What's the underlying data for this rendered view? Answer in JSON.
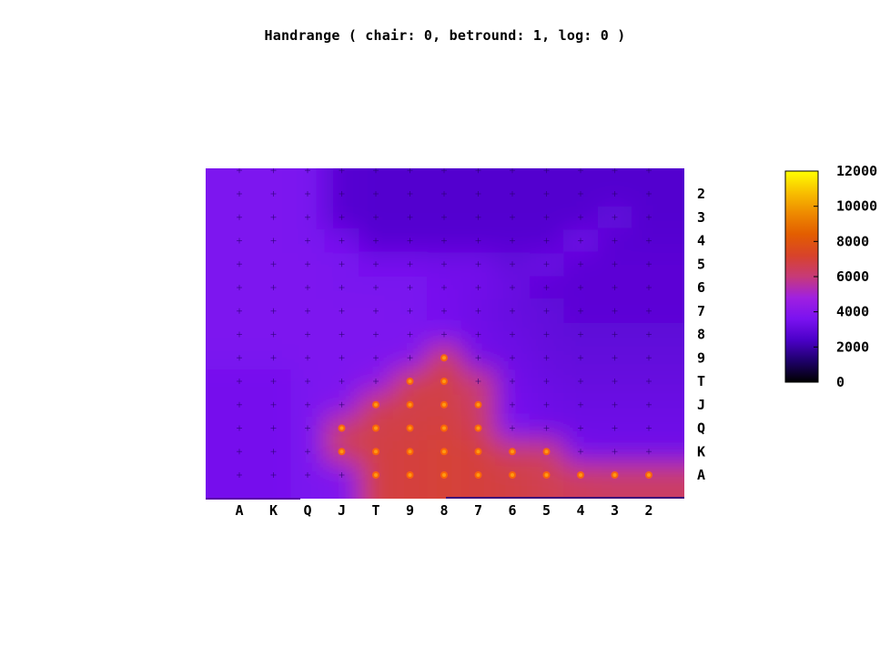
{
  "chart_data": {
    "type": "heatmap",
    "title": "Handrange ( chair: 0, betround: 1, log: 0 )",
    "x_categories": [
      "A",
      "K",
      "Q",
      "J",
      "T",
      "9",
      "8",
      "7",
      "6",
      "5",
      "4",
      "3",
      "2"
    ],
    "y_categories": [
      "2",
      "3",
      "4",
      "5",
      "6",
      "7",
      "8",
      "9",
      "T",
      "J",
      "Q",
      "K",
      "A"
    ],
    "values": [
      [
        3700,
        3700,
        3600,
        2700,
        2600,
        2600,
        2600,
        2600,
        2600,
        2600,
        2600,
        2600,
        2600
      ],
      [
        3700,
        3700,
        3600,
        2700,
        2600,
        2600,
        2600,
        2600,
        2600,
        2600,
        2600,
        3100,
        2600
      ],
      [
        3700,
        3700,
        3600,
        3500,
        2700,
        2700,
        2700,
        2700,
        2700,
        2700,
        3400,
        2700,
        2700
      ],
      [
        3700,
        3700,
        3700,
        3600,
        3500,
        3500,
        3400,
        3400,
        3000,
        3300,
        2800,
        2800,
        2800
      ],
      [
        3700,
        3700,
        3700,
        3600,
        3600,
        3600,
        3500,
        3400,
        3200,
        2800,
        2800,
        2800,
        2800
      ],
      [
        3700,
        3700,
        3700,
        3700,
        3700,
        3600,
        3500,
        3300,
        3100,
        3000,
        2800,
        2800,
        2800
      ],
      [
        3700,
        3700,
        3700,
        3700,
        3700,
        3700,
        3600,
        3400,
        3200,
        3000,
        2900,
        2900,
        2900
      ],
      [
        3600,
        3600,
        3700,
        3700,
        3700,
        3800,
        6800,
        3400,
        3300,
        3100,
        3000,
        3000,
        3000
      ],
      [
        3500,
        3500,
        3600,
        3700,
        4100,
        6600,
        6800,
        6000,
        3400,
        3200,
        3100,
        3100,
        3100
      ],
      [
        3500,
        3500,
        3600,
        3900,
        6500,
        6700,
        6800,
        6300,
        3500,
        3300,
        3200,
        3200,
        3200
      ],
      [
        3500,
        3500,
        3600,
        6200,
        6700,
        6800,
        6900,
        6500,
        3600,
        3400,
        3300,
        3300,
        3300
      ],
      [
        3500,
        3500,
        3600,
        6400,
        6800,
        6900,
        7000,
        6900,
        6300,
        6200,
        3500,
        3400,
        3400
      ],
      [
        3500,
        3500,
        3600,
        3800,
        6800,
        6900,
        7000,
        6900,
        6800,
        6600,
        6400,
        6300,
        6300
      ]
    ],
    "colorbar": {
      "min": 0,
      "max": 12000,
      "ticks": [
        "0",
        "2000",
        "4000",
        "6000",
        "8000",
        "10000",
        "12000"
      ],
      "palette": [
        "#000000",
        "#1e0069",
        "#4b00c8",
        "#7a12f0",
        "#a020e0",
        "#c73a78",
        "#d8432a",
        "#e35d00",
        "#ee8a00",
        "#f8c000",
        "#ffff00"
      ]
    },
    "grid": true,
    "legend": "right"
  }
}
